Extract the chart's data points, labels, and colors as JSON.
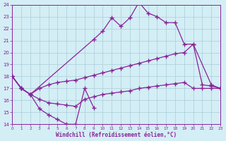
{
  "bg_color": "#d4eef5",
  "grid_color": "#aaccd8",
  "line_color": "#882299",
  "xlabel": "Windchill (Refroidissement éolien,°C)",
  "xlim_min": 0,
  "xlim_max": 23,
  "ylim_min": 14,
  "ylim_max": 24,
  "xticks": [
    0,
    1,
    2,
    3,
    4,
    5,
    6,
    7,
    8,
    9,
    10,
    11,
    12,
    13,
    14,
    15,
    16,
    17,
    18,
    19,
    20,
    21,
    22,
    23
  ],
  "yticks": [
    14,
    15,
    16,
    17,
    18,
    19,
    20,
    21,
    22,
    23,
    24
  ],
  "s1_x": [
    0,
    1,
    2,
    3,
    4,
    5,
    6,
    7,
    8,
    9
  ],
  "s1_y": [
    18.0,
    17.0,
    16.5,
    15.3,
    14.8,
    14.4,
    14.0,
    14.0,
    17.0,
    15.4
  ],
  "s2_x": [
    0,
    1,
    2,
    3,
    4,
    5,
    6,
    7,
    8,
    9,
    10,
    11,
    12,
    13,
    14,
    15,
    16,
    17,
    18,
    19,
    20,
    21,
    22,
    23
  ],
  "s2_y": [
    18.0,
    17.0,
    16.5,
    17.0,
    17.3,
    17.5,
    17.6,
    17.7,
    17.9,
    18.1,
    18.3,
    18.5,
    18.7,
    18.9,
    19.1,
    19.3,
    19.5,
    19.7,
    19.9,
    20.0,
    20.7,
    17.3,
    17.2,
    17.0
  ],
  "s3_x": [
    0,
    1,
    2,
    3,
    4,
    5,
    6,
    7,
    8,
    9,
    10,
    11,
    12,
    13,
    14,
    15,
    16,
    17,
    18,
    19,
    20,
    21,
    22,
    23
  ],
  "s3_y": [
    18.0,
    17.0,
    16.5,
    16.1,
    15.8,
    15.7,
    15.6,
    15.5,
    16.1,
    16.3,
    16.5,
    16.6,
    16.7,
    16.8,
    17.0,
    17.1,
    17.2,
    17.3,
    17.4,
    17.5,
    17.0,
    17.0,
    17.0,
    17.0
  ],
  "s4_x": [
    0,
    1,
    2,
    9,
    10,
    11,
    12,
    13,
    14,
    15,
    16,
    17,
    18,
    19,
    20,
    22,
    23
  ],
  "s4_y": [
    18.0,
    17.0,
    16.5,
    21.1,
    21.8,
    22.9,
    22.2,
    22.9,
    24.2,
    23.3,
    23.0,
    22.5,
    22.5,
    20.7,
    20.7,
    17.3,
    17.0
  ]
}
